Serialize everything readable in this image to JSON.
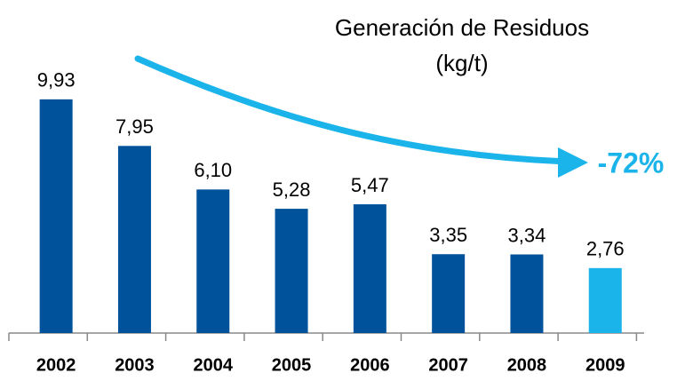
{
  "chart_data": {
    "type": "bar",
    "title": "Generación de Residuos",
    "subtitle": "(kg/t)",
    "annotation": "-72%",
    "categories": [
      "2002",
      "2003",
      "2004",
      "2005",
      "2006",
      "2007",
      "2008",
      "2009"
    ],
    "values": [
      9.93,
      7.95,
      6.1,
      5.28,
      5.47,
      3.35,
      3.34,
      2.76
    ],
    "value_labels": [
      "9,93",
      "7,95",
      "6,10",
      "5,28",
      "5,47",
      "3,35",
      "3,34",
      "2,76"
    ],
    "colors": [
      "#00529b",
      "#00529b",
      "#00529b",
      "#00529b",
      "#00529b",
      "#00529b",
      "#00529b",
      "#1ab4ea"
    ],
    "grid": false
  }
}
